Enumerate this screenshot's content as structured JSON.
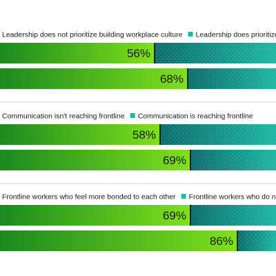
{
  "colors": {
    "green_dark": "#1a8a1e",
    "green_light": "#7fe01c",
    "teal_dark": "#0e6e6e",
    "teal_light": "#1fb8a4",
    "divider": "#000000",
    "separator": "#d0d0d0",
    "background": "#ffffff"
  },
  "chart_data": [
    {
      "type": "bar",
      "orientation": "horizontal",
      "stacked": true,
      "legend": [
        "Leadership does not prioritize building workplace culture",
        "Leadership does prioritize workplace"
      ],
      "series": [
        {
          "name": "Leadership does not prioritize building workplace culture",
          "values": [
            56,
            68
          ]
        },
        {
          "name": "Leadership does prioritize workplace",
          "values": [
            44,
            32
          ]
        }
      ],
      "labels": [
        "56%",
        "68%"
      ]
    },
    {
      "type": "bar",
      "orientation": "horizontal",
      "stacked": true,
      "legend": [
        "Communication isn't reaching frontline",
        "Communication is reaching frontline"
      ],
      "series": [
        {
          "name": "Communication isn't reaching frontline",
          "values": [
            58,
            69
          ]
        },
        {
          "name": "Communication is reaching frontline",
          "values": [
            42,
            31
          ]
        }
      ],
      "labels": [
        "58%",
        "69%"
      ]
    },
    {
      "type": "bar",
      "orientation": "horizontal",
      "stacked": true,
      "legend": [
        "Frontline workers who feel more bonded to each other",
        "Frontline workers who do not feel more"
      ],
      "series": [
        {
          "name": "Frontline workers who feel more bonded to each other",
          "values": [
            69,
            86
          ]
        },
        {
          "name": "Frontline workers who do not feel more",
          "values": [
            31,
            14
          ]
        }
      ],
      "labels": [
        "69%",
        "86%"
      ]
    }
  ]
}
